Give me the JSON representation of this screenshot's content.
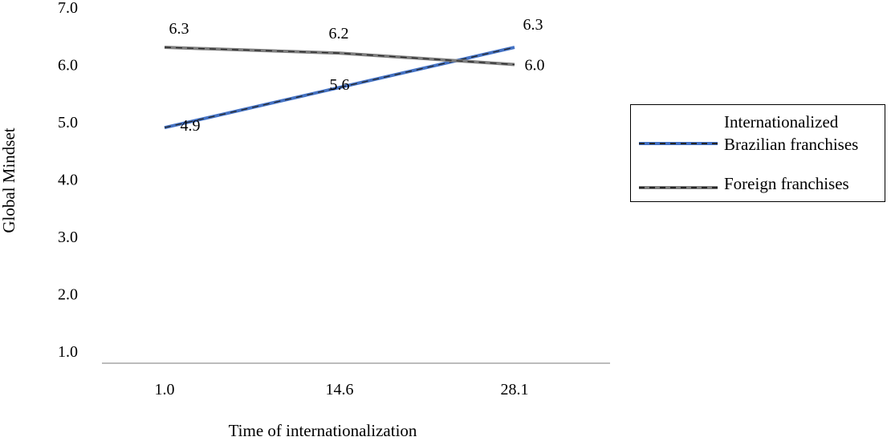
{
  "chart_data": {
    "type": "line",
    "categories": [
      "1.0",
      "14.6",
      "28.1"
    ],
    "series": [
      {
        "name": "Internationalized Brazilian franchises",
        "values": [
          4.9,
          5.6,
          6.3
        ],
        "point_labels": [
          "4.9",
          "5.6",
          "6.3"
        ],
        "color": "#4472C4"
      },
      {
        "name": "Foreign franchises",
        "values": [
          6.3,
          6.2,
          6.0
        ],
        "point_labels": [
          "6.3",
          "6.2",
          "6.0"
        ],
        "color": "#7F7F7F"
      }
    ],
    "xlabel": "Time of internationalization",
    "ylabel": "Global Mindset",
    "ylim": [
      1.0,
      7.0
    ],
    "yticks": [
      "1.0",
      "2.0",
      "3.0",
      "4.0",
      "5.0",
      "6.0",
      "7.0"
    ],
    "grid": false,
    "legend_position": "right",
    "line_style": "solid with black dashed overlay"
  },
  "colors": {
    "axis_line": "#A6A6A6",
    "dash_overlay": "#262626",
    "text": "#000000"
  }
}
